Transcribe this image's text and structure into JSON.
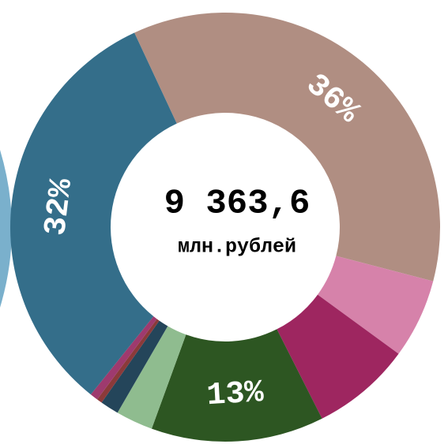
{
  "chart_data": {
    "type": "donut",
    "center_value": "9 363,6",
    "center_label": "млн.рублей",
    "values": [
      36,
      6,
      7.5,
      13,
      2.8,
      1.4,
      0.4,
      0.6,
      32.3
    ],
    "value_labels": [
      "36%",
      null,
      null,
      "13%",
      null,
      null,
      null,
      null,
      "32%"
    ],
    "colors": [
      "#b08e82",
      "#d682aa",
      "#9e2660",
      "#2d5622",
      "#8fbc8f",
      "#24455a",
      "#8b3a3a",
      "#9e3a6e",
      "#346e8a"
    ]
  }
}
